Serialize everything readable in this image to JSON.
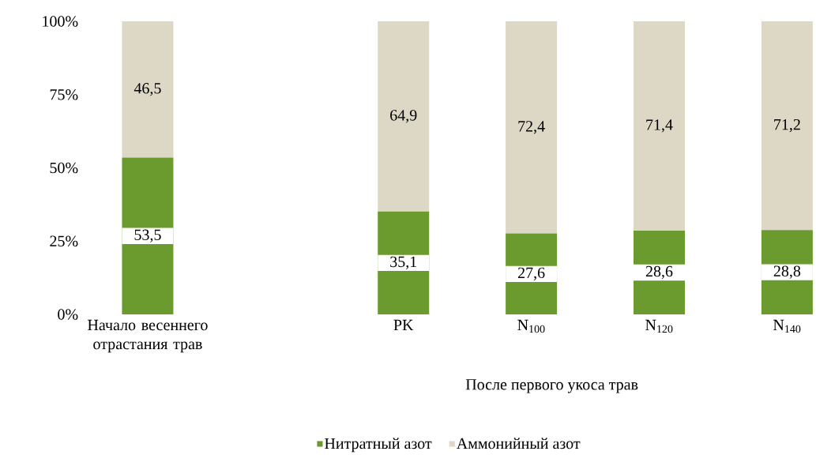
{
  "chart_data": {
    "type": "bar",
    "stacked": true,
    "categories": [
      "Начало весеннего отрастания трав",
      null,
      "PK",
      "N$_{100}$",
      "N$_{120}$",
      "N$_{140}$"
    ],
    "series": [
      {
        "name": "Нитратный азот",
        "color": "#6b9a2f",
        "values": [
          53.5,
          null,
          35.1,
          27.6,
          28.6,
          28.8
        ],
        "value_labels": [
          "53,5",
          null,
          "35,1",
          "27,6",
          "28,6",
          "28,8"
        ]
      },
      {
        "name": "Аммонийный азот",
        "color": "#dcd8c5",
        "values": [
          46.5,
          null,
          64.9,
          72.4,
          71.4,
          71.2
        ],
        "value_labels": [
          "46,5",
          null,
          "64,9",
          "72,4",
          "71,4",
          "71,2"
        ]
      }
    ],
    "ylim": [
      0,
      100
    ],
    "yticks": [
      {
        "value": 0,
        "label": "0%"
      },
      {
        "value": 25,
        "label": "25%"
      },
      {
        "value": 50,
        "label": "50%"
      },
      {
        "value": 75,
        "label": "75%"
      },
      {
        "value": 100,
        "label": "100%"
      }
    ],
    "annotations": [
      "После первого укоса трав"
    ],
    "legend": "bottom",
    "grid": false
  }
}
